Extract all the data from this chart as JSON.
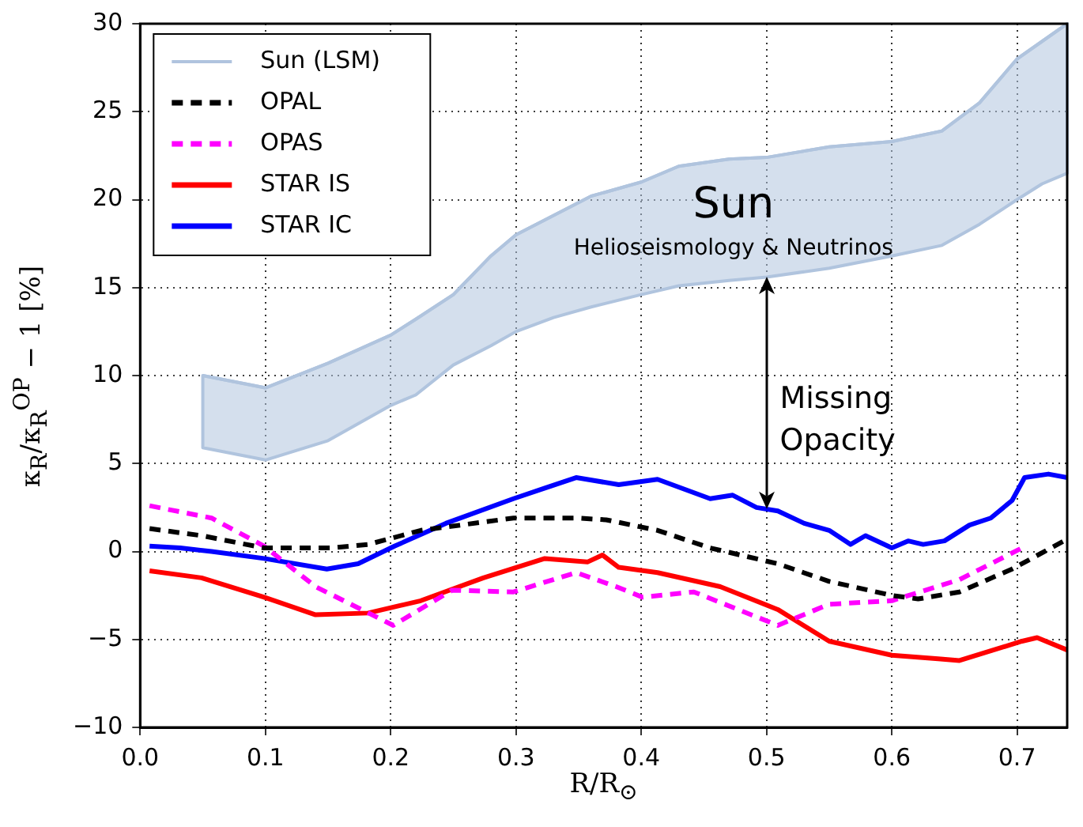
{
  "chart_data": {
    "type": "line",
    "xlabel": "R/R$_{⊙}$",
    "ylabel": "κ$_{R}$/κ$_{R}$$^{OP}$ − 1 [%]",
    "xlim": [
      0,
      0.74
    ],
    "ylim": [
      -10,
      30
    ],
    "xticks": [
      {
        "value": 0,
        "label": "0.0"
      },
      0.1,
      0.2,
      0.3,
      0.4,
      0.5,
      0.6,
      0.7
    ],
    "yticks": [
      {
        "value": -10,
        "label": "−10"
      },
      {
        "value": -5,
        "label": "−5"
      },
      0,
      5,
      10,
      15,
      20,
      25,
      30
    ],
    "grid": true,
    "legend": "top left",
    "series": [
      {
        "name": "Sun (LSM)",
        "type": "line",
        "line_style": "solid",
        "color": "#b0c4de",
        "x": [
          0.05,
          0.1,
          0.15,
          0.2,
          0.22,
          0.25,
          0.28,
          0.3,
          0.33,
          0.36,
          0.4,
          0.43,
          0.47,
          0.5,
          0.55,
          0.6,
          0.64,
          0.67,
          0.7,
          0.72,
          0.74
        ],
        "values": [
          10,
          9.3,
          10.7,
          12.3,
          13.2,
          14.6,
          16.8,
          18,
          19.1,
          20.2,
          21,
          21.9,
          22.3,
          22.4,
          23,
          23.3,
          23.9,
          25.5,
          28,
          29,
          30
        ],
        "upper": [
          10,
          9.3,
          10.7,
          12.3,
          13.2,
          14.6,
          16.8,
          18,
          19.1,
          20.2,
          21,
          21.9,
          22.3,
          22.4,
          23,
          23.3,
          23.9,
          25.5,
          28,
          29,
          30
        ],
        "lower": [
          5.9,
          5.2,
          6.3,
          8.3,
          8.9,
          10.6,
          11.7,
          12.5,
          13.3,
          13.9,
          14.6,
          15.1,
          15.4,
          15.6,
          16.1,
          16.8,
          17.4,
          18.6,
          20,
          20.9,
          21.5
        ]
      },
      {
        "name": "OPAL",
        "color": "#000000",
        "line_style": "dashed",
        "x": [
          0.0075,
          0.049,
          0.099,
          0.153,
          0.182,
          0.224,
          0.298,
          0.348,
          0.372,
          0.413,
          0.455,
          0.509,
          0.55,
          0.6,
          0.621,
          0.654,
          0.696,
          0.74
        ],
        "values": [
          1.3,
          0.9,
          0.2,
          0.2,
          0.4,
          1.2,
          1.9,
          1.9,
          1.8,
          1.2,
          0.2,
          -0.7,
          -1.7,
          -2.5,
          -2.7,
          -2.3,
          -1,
          0.7
        ]
      },
      {
        "name": "OPAS",
        "color": "#ff00ff",
        "line_style": "dashed",
        "x": [
          0.0075,
          0.057,
          0.099,
          0.14,
          0.202,
          0.249,
          0.298,
          0.348,
          0.38,
          0.401,
          0.442,
          0.509,
          0.55,
          0.6,
          0.654,
          0.704
        ],
        "values": [
          2.6,
          1.9,
          0.3,
          -2,
          -4.2,
          -2.2,
          -2.3,
          -1.2,
          -2,
          -2.6,
          -2.3,
          -4.2,
          -3,
          -2.8,
          -1.6,
          0.2
        ]
      },
      {
        "name": "STAR IS",
        "color": "#ff0000",
        "line_style": "solid",
        "x": [
          0.0075,
          0.049,
          0.099,
          0.14,
          0.182,
          0.224,
          0.274,
          0.323,
          0.357,
          0.369,
          0.382,
          0.413,
          0.463,
          0.509,
          0.55,
          0.6,
          0.637,
          0.654,
          0.704,
          0.716,
          0.74
        ],
        "values": [
          -1.1,
          -1.5,
          -2.6,
          -3.6,
          -3.5,
          -2.8,
          -1.5,
          -0.4,
          -0.6,
          -0.2,
          -0.9,
          -1.2,
          -2,
          -3.3,
          -5.1,
          -5.9,
          -6.1,
          -6.2,
          -5.1,
          -4.9,
          -5.6
        ]
      },
      {
        "name": "STAR IC",
        "color": "#0000ff",
        "line_style": "solid",
        "x": [
          0.0075,
          0.032,
          0.057,
          0.099,
          0.149,
          0.174,
          0.203,
          0.244,
          0.298,
          0.323,
          0.348,
          0.382,
          0.413,
          0.455,
          0.473,
          0.492,
          0.509,
          0.53,
          0.55,
          0.567,
          0.579,
          0.6,
          0.613,
          0.625,
          0.642,
          0.662,
          0.679,
          0.696,
          0.706,
          0.725,
          0.74
        ],
        "values": [
          0.3,
          0.2,
          0,
          -0.4,
          -1,
          -0.7,
          0.3,
          1.6,
          3,
          3.6,
          4.2,
          3.8,
          4.1,
          3,
          3.2,
          2.5,
          2.3,
          1.6,
          1.2,
          0.4,
          0.9,
          0.2,
          0.6,
          0.4,
          0.6,
          1.5,
          1.9,
          2.9,
          4.2,
          4.4,
          4.2
        ]
      }
    ],
    "annotations": [
      "Sun",
      "Helioseismology & Neutrinos",
      "Missing\nOpacity"
    ]
  }
}
